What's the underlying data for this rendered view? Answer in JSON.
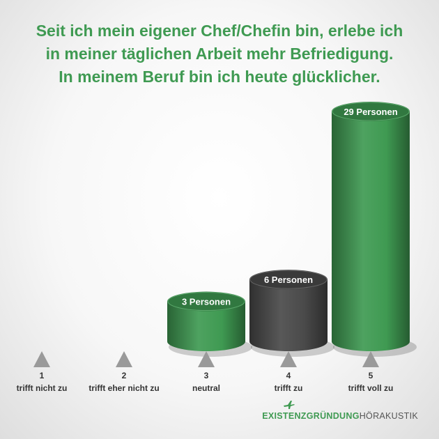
{
  "title_lines": [
    "Seit ich mein eigener Chef/Chefin bin, erlebe ich",
    "in meiner täglichen Arbeit mehr Befriedigung.",
    "In meinem Beruf bin ich heute glücklicher."
  ],
  "chart_data": {
    "type": "bar",
    "title": "Seit ich mein eigener Chef/Chefin bin, erlebe ich in meiner täglichen Arbeit mehr Befriedigung. In meinem Beruf bin ich heute glücklicher.",
    "categories": [
      "1",
      "2",
      "3",
      "4",
      "5"
    ],
    "category_labels": [
      "trifft nicht zu",
      "trifft eher nicht zu",
      "neutral",
      "trifft zu",
      "trifft voll zu"
    ],
    "values": [
      0,
      0,
      3,
      6,
      29
    ],
    "data_labels": [
      "",
      "",
      "3 Personen",
      "6 Personen",
      "29 Personen"
    ],
    "bar_colors": [
      "#3f9a52",
      "#3f9a52",
      "#3f9a52",
      "#4a4a4a",
      "#3f9a52"
    ],
    "shape": "3d-cylinder",
    "xlabel": "",
    "ylabel": "",
    "grid": false,
    "legend": "none"
  },
  "logo": {
    "part1": "EXISTENZGRÜNDUNG",
    "part2": "HÖRAKUSTIK",
    "icon": "airplane-icon"
  },
  "colors": {
    "accent_green": "#3f9a52",
    "dark_gray": "#4a4a4a",
    "marker_gray": "#9a9a9a"
  }
}
